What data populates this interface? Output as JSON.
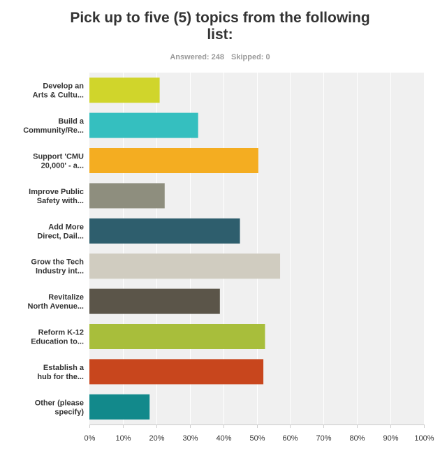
{
  "header": {
    "title_line1": "Pick up to five (5) topics from the following",
    "title_line2": "list:",
    "answered": "Answered: 248",
    "skipped": "Skipped: 0"
  },
  "chart_data": {
    "type": "bar",
    "orientation": "horizontal",
    "title": "Pick up to five (5) topics from the following list:",
    "categories": [
      [
        "Develop an",
        "Arts & Cultu..."
      ],
      [
        "Build a",
        "Community/Re..."
      ],
      [
        "Support 'CMU",
        "20,000' - a..."
      ],
      [
        "Improve Public",
        "Safety with..."
      ],
      [
        "Add More",
        "Direct, Dail..."
      ],
      [
        "Grow the Tech",
        "Industry int..."
      ],
      [
        "Revitalize",
        "North Avenue..."
      ],
      [
        "Reform K-12",
        "Education to..."
      ],
      [
        "Establish a",
        "hub for the..."
      ],
      [
        "Other (please",
        "specify)"
      ]
    ],
    "values": [
      21,
      32.5,
      50.5,
      22.5,
      45,
      57,
      39,
      52.5,
      52,
      18
    ],
    "colors": [
      "#d0d52b",
      "#35bfbf",
      "#f4ad21",
      "#8e8e7e",
      "#2e5e6d",
      "#d0ccc0",
      "#5b5549",
      "#a8be3b",
      "#c8461d",
      "#12898b"
    ],
    "xlim": [
      0,
      100
    ],
    "ticks": [
      "0%",
      "10%",
      "20%",
      "30%",
      "40%",
      "50%",
      "60%",
      "70%",
      "80%",
      "90%",
      "100%"
    ],
    "grid": true,
    "legend": "none"
  }
}
